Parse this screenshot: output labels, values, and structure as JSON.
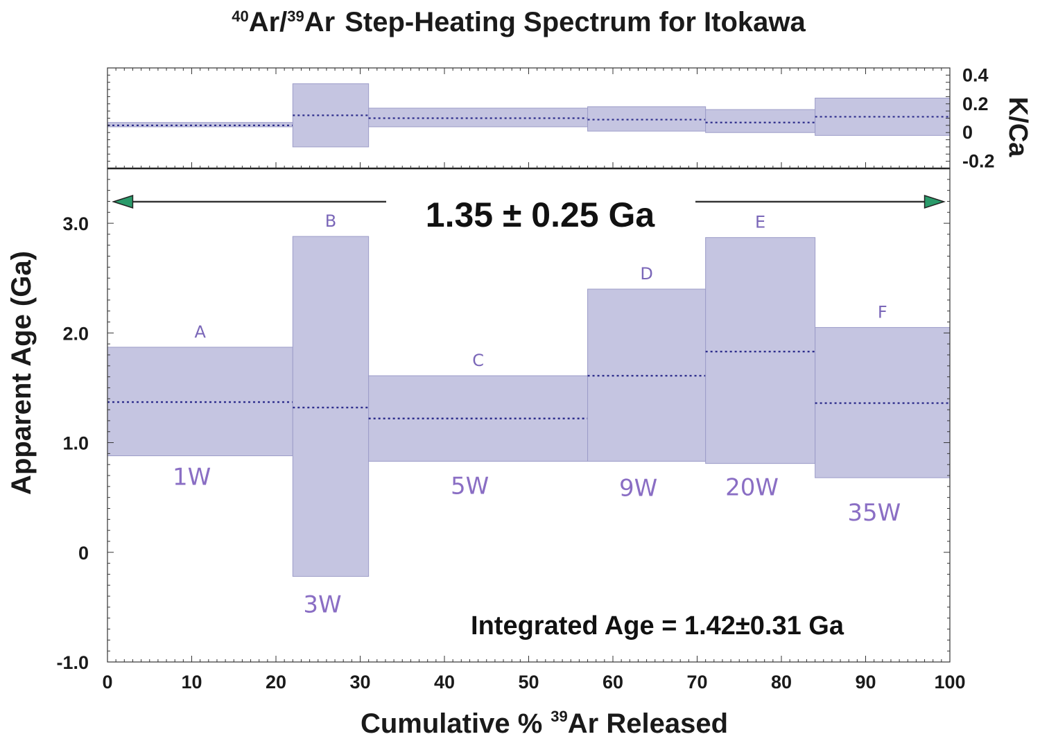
{
  "chart_data": {
    "type": "bar",
    "title": "Ar/Ar Step-Heating Spectrum for Itokawa",
    "title_parts": {
      "sup1": "40",
      "part1": "Ar/",
      "sup2": "39",
      "part2": "Ar",
      "rest": "Step-Heating Spectrum for Itokawa"
    },
    "xlabel": "Cumulative % Ar Released",
    "xlabel_parts": {
      "before": "Cumulative %",
      "sup": "39",
      "after": "Ar Released"
    },
    "ylabel": "Apparent Age (Ga)",
    "y2label": "K/Ca",
    "xlim": [
      0,
      100
    ],
    "ylim": [
      -1.0,
      3.5
    ],
    "y2lim": [
      -0.25,
      0.45
    ],
    "x_ticks": [
      "0",
      "10",
      "20",
      "30",
      "40",
      "50",
      "60",
      "70",
      "80",
      "90",
      "100"
    ],
    "y_ticks": [
      "-1.0",
      "0",
      "1.0",
      "2.0",
      "3.0"
    ],
    "y2_ticks": [
      "-0.2",
      "0",
      "0.2",
      "0.4"
    ],
    "plateau_label": "1.35 ± 0.25 Ga",
    "plateau_value": 1.35,
    "plateau_error": 0.25,
    "integrated_label": "Integrated Age = 1.42±0.31 Ga",
    "colors": {
      "box": "#c5c5e1",
      "box_edge": "#9c9cc8",
      "dotted": "#2e2e8c",
      "label": "#7a66b8",
      "arrow_head": "#2a9a6a"
    },
    "steps": [
      {
        "letter": "A",
        "power": "1W",
        "x_start": 0,
        "x_end": 22,
        "age": 1.37,
        "age_low": 0.88,
        "age_high": 1.87,
        "kca": 0.05,
        "kca_low": 0.04,
        "kca_high": 0.07
      },
      {
        "letter": "B",
        "power": "3W",
        "x_start": 22,
        "x_end": 31,
        "age": 1.32,
        "age_low": -0.22,
        "age_high": 2.88,
        "kca": 0.12,
        "kca_low": -0.1,
        "kca_high": 0.34
      },
      {
        "letter": "C",
        "power": "5W",
        "x_start": 31,
        "x_end": 57,
        "age": 1.22,
        "age_low": 0.83,
        "age_high": 1.61,
        "kca": 0.1,
        "kca_low": 0.04,
        "kca_high": 0.17
      },
      {
        "letter": "D",
        "power": "9W",
        "x_start": 57,
        "x_end": 71,
        "age": 1.61,
        "age_low": 0.83,
        "age_high": 2.4,
        "kca": 0.09,
        "kca_low": 0.01,
        "kca_high": 0.18
      },
      {
        "letter": "E",
        "power": "20W",
        "x_start": 71,
        "x_end": 84,
        "age": 1.83,
        "age_low": 0.81,
        "age_high": 2.87,
        "kca": 0.07,
        "kca_low": 0.0,
        "kca_high": 0.16
      },
      {
        "letter": "F",
        "power": "35W",
        "x_start": 84,
        "x_end": 100,
        "age": 1.36,
        "age_low": 0.68,
        "age_high": 2.05,
        "kca": 0.11,
        "kca_low": -0.02,
        "kca_high": 0.24
      }
    ]
  }
}
